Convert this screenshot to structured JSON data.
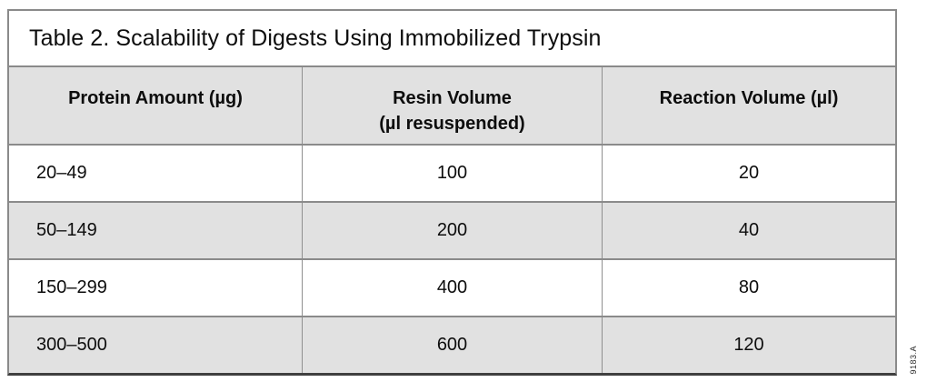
{
  "title": "Table 2. Scalability of Digests Using Immobilized Trypsin",
  "table": {
    "headers": [
      "Protein Amount (µg)",
      "Resin Volume\n(µl resuspended)",
      "Reaction Volume (µl)"
    ],
    "rows": [
      [
        "20–49",
        "100",
        "20"
      ],
      [
        "50–149",
        "200",
        "40"
      ],
      [
        "150–299",
        "400",
        "80"
      ],
      [
        "300–500",
        "600",
        "120"
      ]
    ]
  },
  "figure_code": "9183.A",
  "colors": {
    "row_shade": "#e1e1e1",
    "grid_line": "#8a8a8a",
    "bottom_border": "#3f3f3f",
    "text": "#0d0d0d"
  }
}
